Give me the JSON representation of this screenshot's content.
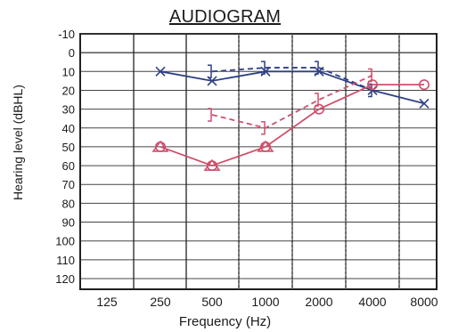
{
  "chart_data": {
    "type": "line",
    "title": "AUDIOGRAM",
    "xlabel": "Frequency (Hz)",
    "ylabel": "Hearing level (dBHL)",
    "x_categories": [
      "125",
      "250",
      "500",
      "1000",
      "2000",
      "4000",
      "8000"
    ],
    "x_intermediate_dotted": [
      "750",
      "1500",
      "3000",
      "6000"
    ],
    "y_ticks": [
      -10,
      0,
      10,
      20,
      30,
      40,
      50,
      60,
      70,
      80,
      90,
      100,
      110,
      120
    ],
    "ylim": [
      -10,
      120
    ],
    "y_inverted": true,
    "grid": true,
    "series": [
      {
        "color": "#2f3f86",
        "line_style": "solid",
        "marker": "x",
        "x": [
          "250",
          "500",
          "1000",
          "2000",
          "4000",
          "8000"
        ],
        "y": [
          10,
          15,
          10,
          10,
          20,
          27
        ]
      },
      {
        "color": "#2f3f86",
        "line_style": "dashed",
        "marker": "bracket",
        "x": [
          "500",
          "1000",
          "2000",
          "4000"
        ],
        "y": [
          10,
          8,
          8,
          20
        ]
      },
      {
        "color": "#d04f6c",
        "line_style": "solid",
        "marker": "circle",
        "x": [
          "250",
          "500",
          "1000",
          "2000",
          "4000",
          "8000"
        ],
        "y": [
          50,
          60,
          50,
          30,
          17,
          17
        ]
      },
      {
        "color": "#d04f6c",
        "line_style": "dashed",
        "marker": "bracket",
        "x": [
          "500",
          "1000",
          "2000",
          "4000"
        ],
        "y": [
          33,
          40,
          25,
          12
        ]
      }
    ]
  }
}
